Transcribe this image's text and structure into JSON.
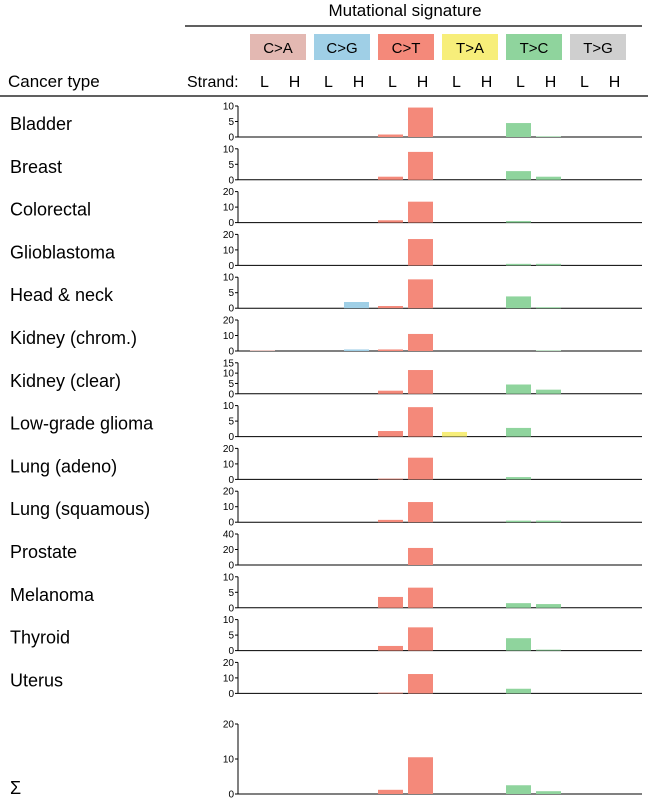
{
  "header": {
    "title": "Mutational signature",
    "row_header": "Cancer type",
    "strand_label": "Strand:",
    "strand_l": "L",
    "strand_h": "H"
  },
  "colors": {
    "C>A": "#e3b8b2",
    "C>G": "#9fcfe6",
    "C>T": "#f4897a",
    "T>A": "#f7ee7a",
    "T>C": "#8fd49d",
    "T>G": "#cfcfcf"
  },
  "chart_data": {
    "type": "bar",
    "signatures": [
      "C>A",
      "C>G",
      "C>T",
      "T>A",
      "T>C",
      "T>G"
    ],
    "strands": [
      "L",
      "H"
    ],
    "rows": [
      {
        "label": "Bladder",
        "ticks": [
          0,
          5,
          10
        ],
        "ymax": 10,
        "values": [
          0,
          0,
          0,
          0,
          0.8,
          9.5,
          0,
          0,
          4.5,
          0.2,
          0,
          0
        ]
      },
      {
        "label": "Breast",
        "ticks": [
          0,
          5,
          10
        ],
        "ymax": 10,
        "values": [
          0,
          0,
          0,
          0,
          1.0,
          9.0,
          0,
          0,
          2.8,
          1.0,
          0,
          0
        ]
      },
      {
        "label": "Colorectal",
        "ticks": [
          0,
          10,
          20
        ],
        "ymax": 20,
        "values": [
          0,
          0,
          0,
          0,
          1.5,
          13.5,
          0,
          0,
          1.0,
          0,
          0,
          0
        ]
      },
      {
        "label": "Glioblastoma",
        "ticks": [
          0,
          10,
          20
        ],
        "ymax": 20,
        "values": [
          0,
          0,
          0,
          0,
          0,
          17.0,
          0,
          0,
          1.0,
          1.0,
          0,
          0
        ]
      },
      {
        "label": "Head & neck",
        "ticks": [
          0,
          5,
          10
        ],
        "ymax": 10,
        "values": [
          0,
          0,
          0,
          2.0,
          0.7,
          9.3,
          0,
          0,
          3.8,
          0.3,
          0,
          0
        ]
      },
      {
        "label": "Kidney (chrom.)",
        "ticks": [
          0,
          10,
          20
        ],
        "ymax": 20,
        "values": [
          0.5,
          0,
          0,
          1.0,
          1.0,
          11.0,
          0,
          0,
          0,
          0.3,
          0,
          0
        ]
      },
      {
        "label": "Kidney (clear)",
        "ticks": [
          0,
          5,
          10,
          15
        ],
        "ymax": 15,
        "values": [
          0,
          0,
          0,
          0,
          1.5,
          11.5,
          0,
          0,
          4.5,
          2.0,
          0,
          0
        ]
      },
      {
        "label": "Low-grade glioma",
        "ticks": [
          0,
          5,
          10
        ],
        "ymax": 10,
        "values": [
          0,
          0,
          0,
          0,
          1.8,
          9.5,
          1.5,
          0,
          2.8,
          0,
          0,
          0
        ]
      },
      {
        "label": "Lung (adeno)",
        "ticks": [
          0,
          10,
          20
        ],
        "ymax": 20,
        "values": [
          0,
          0,
          0,
          0,
          0.5,
          14.0,
          0,
          0,
          1.5,
          0,
          0,
          0
        ]
      },
      {
        "label": "Lung (squamous)",
        "ticks": [
          0,
          10,
          20
        ],
        "ymax": 20,
        "values": [
          0,
          0,
          0,
          0,
          1.5,
          13.0,
          0,
          0,
          1.0,
          1.0,
          0,
          0
        ]
      },
      {
        "label": "Prostate",
        "ticks": [
          0,
          20,
          40
        ],
        "ymax": 40,
        "values": [
          0,
          0,
          0,
          0,
          0,
          22.0,
          0,
          0,
          0,
          0,
          0,
          0
        ]
      },
      {
        "label": "Melanoma",
        "ticks": [
          0,
          5,
          10
        ],
        "ymax": 10,
        "values": [
          0,
          0,
          0,
          0,
          3.5,
          6.5,
          0,
          0,
          1.5,
          1.2,
          0,
          0
        ]
      },
      {
        "label": "Thyroid",
        "ticks": [
          0,
          5,
          10
        ],
        "ymax": 10,
        "values": [
          0,
          0,
          0,
          0,
          1.5,
          7.5,
          0,
          0,
          4.0,
          0.3,
          0,
          0
        ]
      },
      {
        "label": "Uterus",
        "ticks": [
          0,
          10,
          20
        ],
        "ymax": 20,
        "values": [
          0,
          0,
          0,
          0,
          0.5,
          12.5,
          0,
          0,
          3.0,
          0,
          0,
          0
        ]
      }
    ],
    "sum_row": {
      "label": "Σ",
      "ticks": [
        0,
        10,
        20
      ],
      "ymax": 20,
      "values": [
        0,
        0,
        0,
        0,
        1.2,
        10.5,
        0,
        0,
        2.5,
        0.8,
        0,
        0
      ]
    }
  }
}
